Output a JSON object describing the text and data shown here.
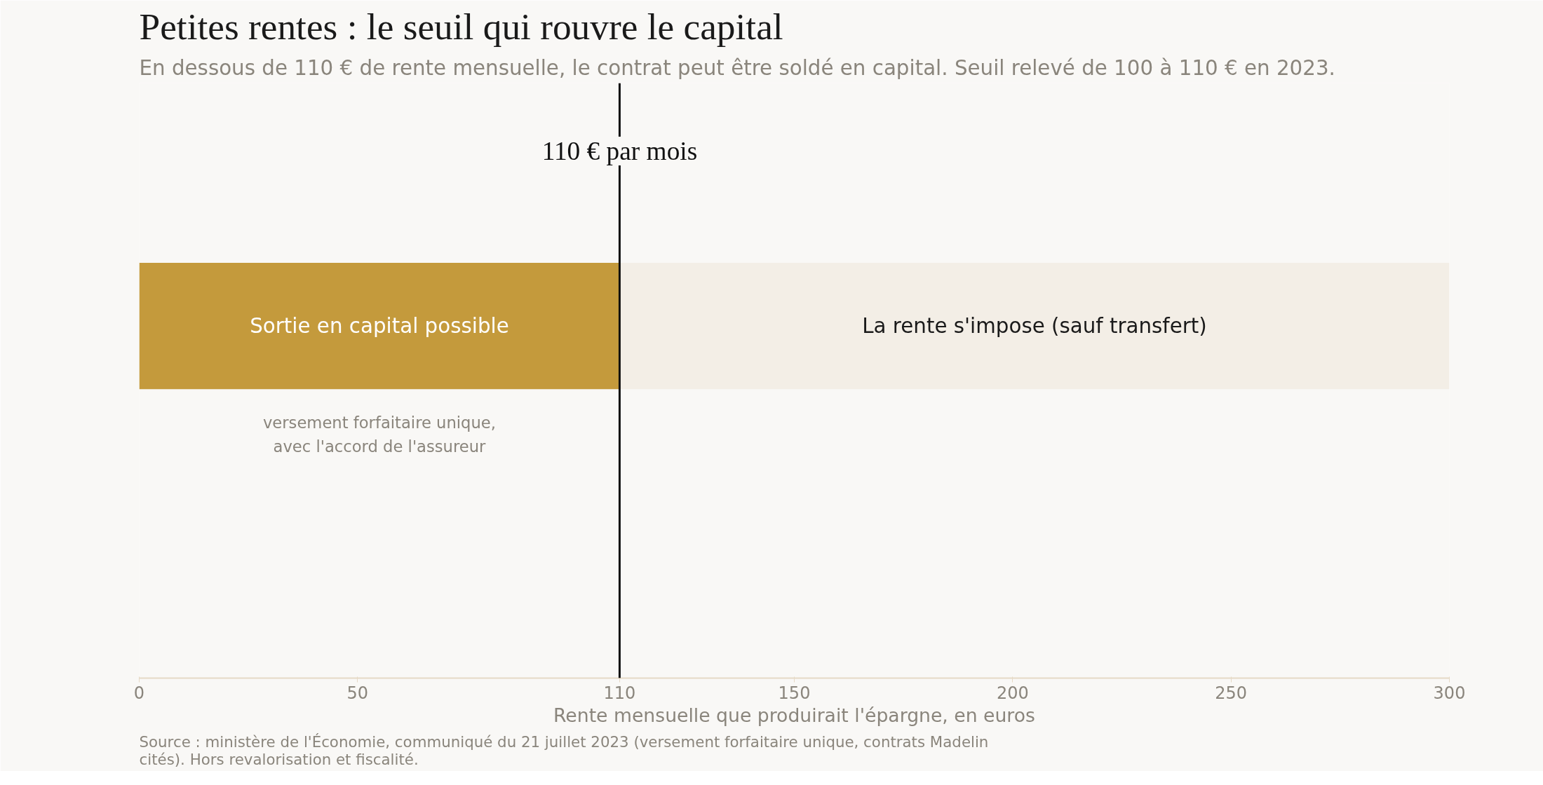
{
  "chart_data": {
    "type": "bar",
    "orientation": "horizontal",
    "title": "Petites rentes : le seuil qui rouvre le capital",
    "subtitle": "En dessous de 110 € de rente mensuelle, le contrat peut être soldé en capital. Seuil relevé de 100 à 110 € en 2023.",
    "xlabel": "Rente mensuelle que produirait l'épargne, en euros",
    "categories": [
      null
    ],
    "series": [
      {
        "values": [
          110
        ],
        "base": [
          0
        ],
        "color": "#c49a3c",
        "value_labels": [
          "Sortie en capital possible"
        ]
      },
      {
        "values": [
          190
        ],
        "base": [
          110
        ],
        "color": "#f3eee6",
        "value_labels": [
          "La rente s'impose (sauf transfert)"
        ]
      }
    ],
    "xlim": [
      0,
      300
    ],
    "xticks": [
      0,
      50,
      110,
      150,
      200,
      250,
      300
    ],
    "grid": false,
    "tick_labels": "x",
    "ref_lines": [
      {
        "axis": "x",
        "value": 110,
        "label": "110 € par mois",
        "color": "#111111"
      }
    ],
    "annotations": [
      "versement forfaitaire unique,\navec l'accord de l'assureur",
      "Source : ministère de l'Économie, communiqué du 21 juillet 2023 (versement forfaitaire unique, contrats Madelin\ncités). Hors revalorisation et fiscalité."
    ]
  }
}
